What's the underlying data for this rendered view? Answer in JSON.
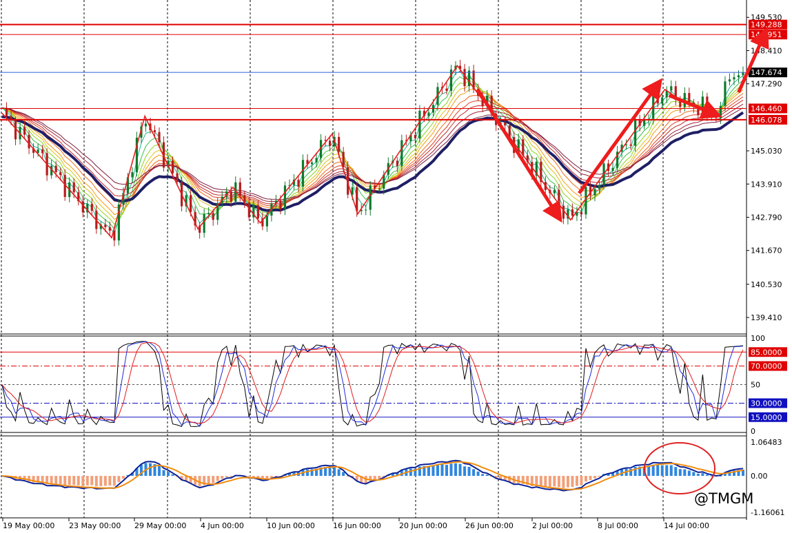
{
  "chart_data": [
    {
      "type": "candlestick",
      "pane": "price",
      "ylim": [
        138.9,
        150.0
      ],
      "y_ticks": [
        "149.530",
        "148.410",
        "147.290",
        "145.030",
        "143.910",
        "142.790",
        "141.670",
        "140.530",
        "139.410"
      ],
      "x_ticks": [
        "19 May 00:00",
        "23 May 00:00",
        "29 May 00:00",
        "4 Jun 00:00",
        "10 Jun 00:00",
        "16 Jun 00:00",
        "20 Jun 00:00",
        "26 Jun 00:00",
        "2 Jul 00:00",
        "8 Jul 00:00",
        "14 Jul 00:00"
      ],
      "current_price": "147.674",
      "horizontal_levels": [
        {
          "label": "149.288",
          "value": 149.288,
          "color": "#e00000"
        },
        {
          "label": "148.951",
          "value": 148.951,
          "color": "#e00000"
        },
        {
          "label": "146.460",
          "value": 146.46,
          "color": "#e00000"
        },
        {
          "label": "146.078",
          "value": 146.078,
          "color": "#e00000"
        }
      ],
      "zigzag": [
        [
          0,
          146.3
        ],
        [
          24.4,
          142.1
        ],
        [
          31.8,
          146.2
        ],
        [
          43.6,
          142.4
        ],
        [
          51.4,
          143.8
        ],
        [
          57.5,
          142.6
        ],
        [
          73.5,
          145.6
        ],
        [
          79.2,
          142.9
        ],
        [
          101.4,
          147.9
        ],
        [
          126.6,
          142.7
        ],
        [
          147.6,
          147.1
        ],
        [
          150.5,
          146.8
        ],
        [
          159.6,
          146.2
        ]
      ],
      "arrows": [
        {
          "from": [
            105.9,
            147.1
          ],
          "to": [
            123.5,
            142.9
          ]
        },
        {
          "from": [
            128.5,
            143.6
          ],
          "to": [
            145.7,
            147.2
          ]
        },
        {
          "from": [
            148.5,
            146.9
          ],
          "to": [
            158.2,
            146.3
          ]
        },
        {
          "from": [
            164.0,
            147.0
          ],
          "to": [
            169.6,
            148.9
          ]
        }
      ],
      "guppy_colors": [
        "#1fb58a",
        "#3cc04a",
        "#8fd21e",
        "#d7c21c",
        "#f39a12",
        "#ef6a1c",
        "#df3f23",
        "#c42a2a",
        "#a22238",
        "#7c1d3d"
      ],
      "trend_line_color": "#1f1f66",
      "up_color": "#0f7a2c",
      "down_color": "#b71c1c"
    },
    {
      "type": "line",
      "pane": "stochastic",
      "ylim": [
        0,
        100
      ],
      "y_ticks": [
        "100",
        "50",
        "0"
      ],
      "levels": [
        {
          "label": "85.0000",
          "value": 85,
          "color": "#e00000"
        },
        {
          "label": "70.0000",
          "value": 70,
          "color": "#e00000"
        },
        {
          "label": "30.0000",
          "value": 30,
          "color": "#1010c0"
        },
        {
          "label": "15.0000",
          "value": 15,
          "color": "#1010c0"
        }
      ],
      "series_colors": [
        "#000000",
        "#1b2bd8",
        "#e01a1a"
      ]
    },
    {
      "type": "histogram",
      "pane": "macd",
      "ylim": [
        -1.16061,
        1.06483
      ],
      "y_ticks": [
        "1.06483",
        "0.00",
        "-1.16061"
      ],
      "positive_color": "#2f86df",
      "negative_color": "#f2a07a",
      "line_colors": [
        "#0b2299",
        "#f28c0c"
      ]
    }
  ],
  "watermark": "@TMGM"
}
